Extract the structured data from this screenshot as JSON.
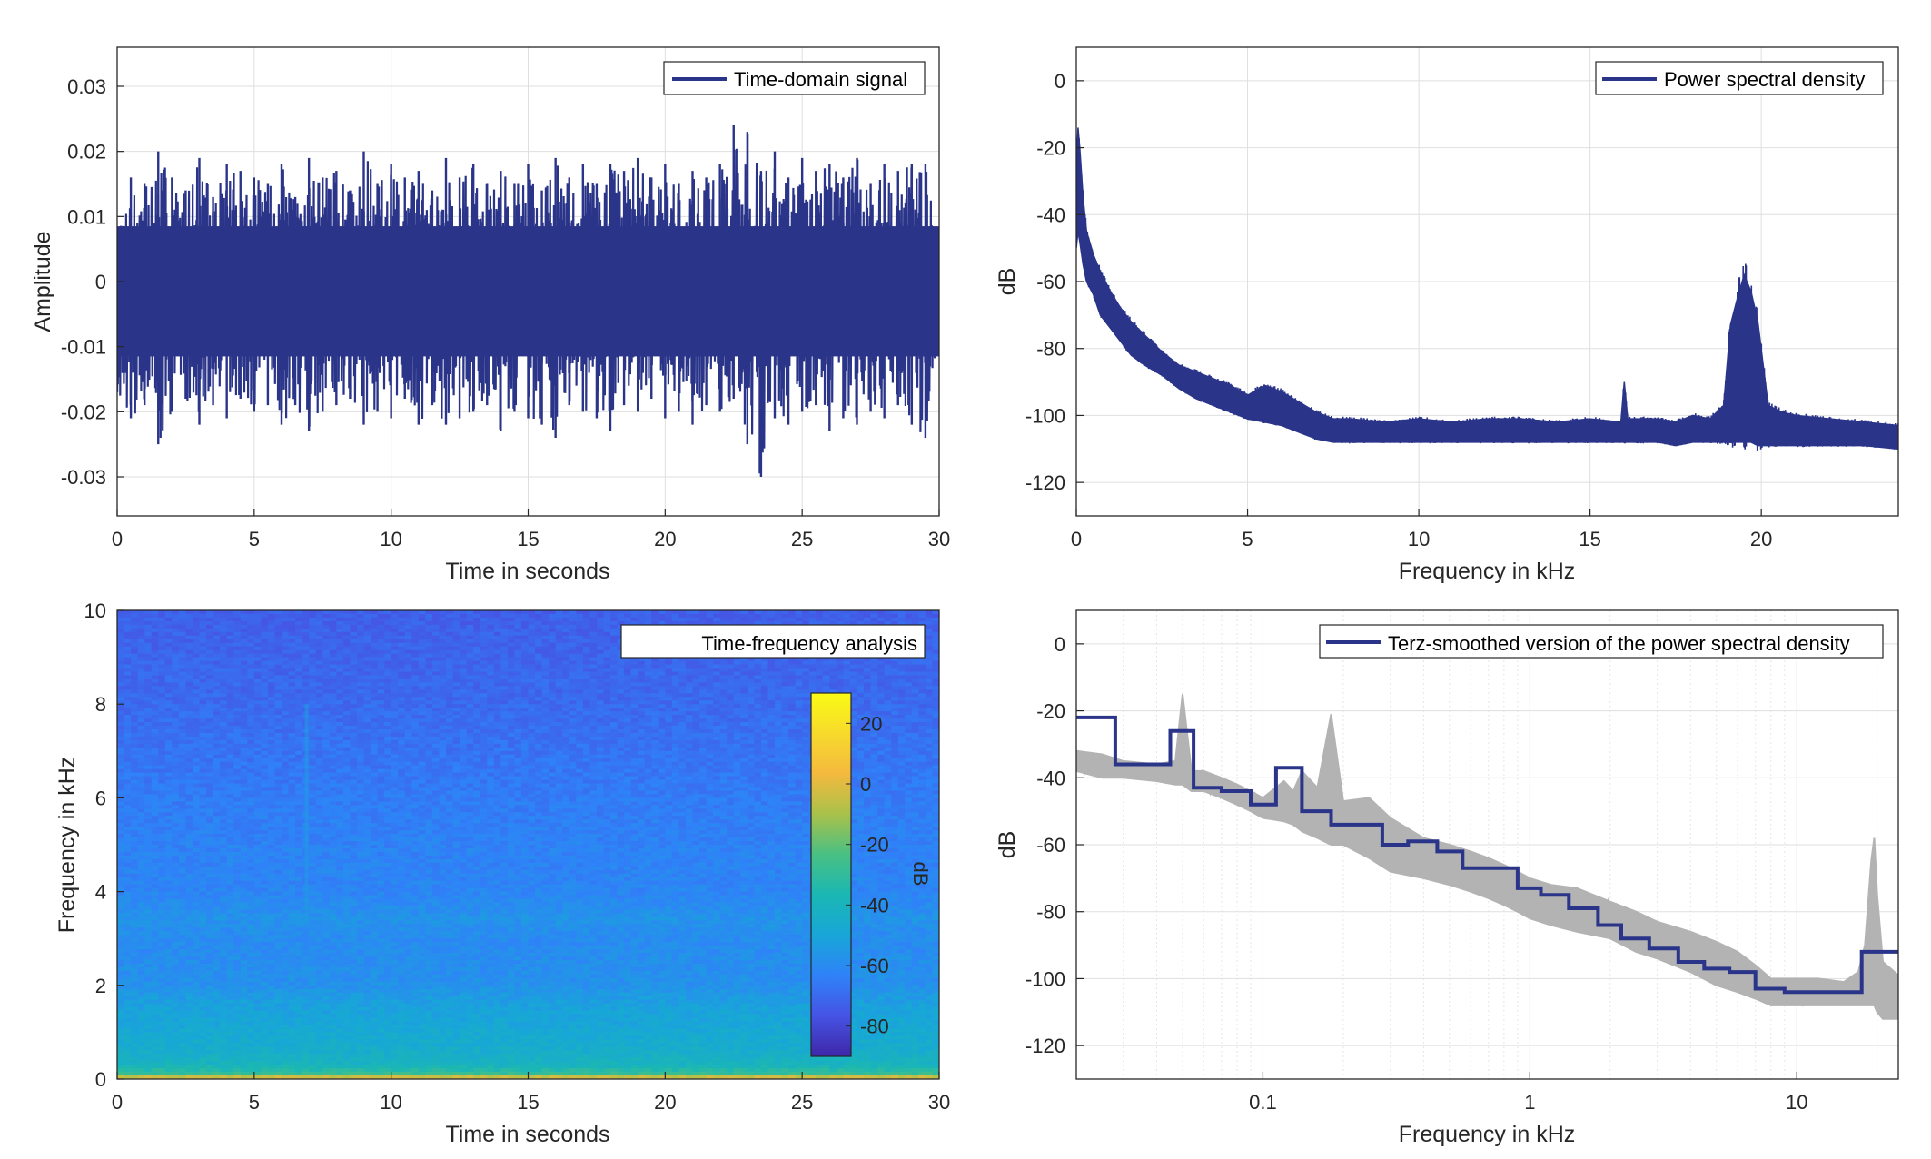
{
  "chart_data": [
    {
      "id": "time-domain",
      "type": "line",
      "xlabel": "Time in seconds",
      "ylabel": "Amplitude",
      "xlim": [
        0,
        30
      ],
      "ylim": [
        -0.036,
        0.036
      ],
      "xticks": [
        0,
        5,
        10,
        15,
        20,
        25,
        30
      ],
      "xtick_labels": [
        "0",
        "5",
        "10",
        "15",
        "20",
        "25",
        "30"
      ],
      "yticks": [
        0.03,
        0.02,
        0.01,
        0,
        -0.01,
        -0.02,
        -0.03
      ],
      "ytick_labels": [
        "0.03",
        "0.02",
        "0.01",
        "0",
        "-0.01",
        "-0.02",
        "-0.03"
      ],
      "grid": true,
      "legend_position": "top-right",
      "series": [
        {
          "name": "Time-domain signal",
          "color": "#2a3489",
          "x": [
            0,
            0.5,
            1,
            1.5,
            2,
            2.5,
            3,
            3.5,
            4,
            4.5,
            5,
            5.5,
            6,
            6.5,
            7,
            7.5,
            8,
            8.5,
            9,
            9.5,
            10,
            10.5,
            11,
            11.5,
            12,
            12.5,
            13,
            13.5,
            14,
            14.5,
            15,
            15.5,
            16,
            16.5,
            17,
            17.5,
            18,
            18.5,
            19,
            19.5,
            20,
            20.5,
            21,
            21.5,
            22,
            22.5,
            23,
            23.5,
            24,
            24.5,
            25,
            25.5,
            26,
            26.5,
            27,
            27.5,
            28,
            28.5,
            29,
            29.5,
            30
          ],
          "max": [
            0.006,
            0.016,
            0.015,
            0.02,
            0.016,
            0.014,
            0.019,
            0.013,
            0.018,
            0.017,
            0.016,
            0.015,
            0.018,
            0.013,
            0.019,
            0.016,
            0.017,
            0.014,
            0.02,
            0.015,
            0.018,
            0.016,
            0.017,
            0.014,
            0.019,
            0.016,
            0.018,
            0.015,
            0.017,
            0.015,
            0.018,
            0.014,
            0.019,
            0.016,
            0.018,
            0.015,
            0.018,
            0.017,
            0.019,
            0.016,
            0.018,
            0.015,
            0.017,
            0.016,
            0.018,
            0.024,
            0.023,
            0.017,
            0.02,
            0.016,
            0.019,
            0.017,
            0.018,
            0.016,
            0.019,
            0.015,
            0.018,
            0.017,
            0.018,
            0.018,
            0.005
          ],
          "min": [
            -0.017,
            -0.021,
            -0.019,
            -0.025,
            -0.02,
            -0.018,
            -0.022,
            -0.019,
            -0.021,
            -0.018,
            -0.02,
            -0.019,
            -0.022,
            -0.019,
            -0.023,
            -0.02,
            -0.019,
            -0.018,
            -0.022,
            -0.02,
            -0.021,
            -0.018,
            -0.022,
            -0.019,
            -0.022,
            -0.021,
            -0.02,
            -0.019,
            -0.023,
            -0.02,
            -0.021,
            -0.022,
            -0.024,
            -0.019,
            -0.02,
            -0.021,
            -0.023,
            -0.019,
            -0.02,
            -0.018,
            -0.021,
            -0.02,
            -0.022,
            -0.019,
            -0.02,
            -0.018,
            -0.025,
            -0.03,
            -0.021,
            -0.022,
            -0.02,
            -0.019,
            -0.023,
            -0.021,
            -0.022,
            -0.02,
            -0.021,
            -0.019,
            -0.022,
            -0.024,
            -0.006
          ]
        }
      ]
    },
    {
      "id": "psd",
      "type": "line",
      "xlabel": "Frequency in kHz",
      "ylabel": "dB",
      "xlim": [
        0,
        24
      ],
      "ylim": [
        -130,
        10
      ],
      "xticks": [
        0,
        5,
        10,
        15,
        20
      ],
      "xtick_labels": [
        "0",
        "5",
        "10",
        "15",
        "20"
      ],
      "yticks": [
        0,
        -20,
        -40,
        -60,
        -80,
        -100,
        -120
      ],
      "ytick_labels": [
        "0",
        "-20",
        "-40",
        "-60",
        "-80",
        "-100",
        "-120"
      ],
      "grid": true,
      "legend_position": "top-right",
      "series": [
        {
          "name": "Power spectral density",
          "color": "#2a3489",
          "x": [
            0,
            0.05,
            0.1,
            0.2,
            0.3,
            0.5,
            0.7,
            1,
            1.3,
            1.6,
            2,
            2.5,
            3,
            3.5,
            4,
            4.5,
            5,
            5.5,
            6,
            6.5,
            7,
            7.5,
            8,
            9,
            10,
            11,
            12,
            13,
            14,
            15,
            15.9,
            16,
            16.1,
            17,
            17.5,
            18,
            18.5,
            18.9,
            19.1,
            19.3,
            19.5,
            19.7,
            19.9,
            20.2,
            20.6,
            21,
            22,
            23,
            24
          ],
          "upper": [
            -25,
            -14,
            -20,
            -35,
            -45,
            -52,
            -57,
            -63,
            -68,
            -72,
            -76,
            -81,
            -85,
            -87,
            -89,
            -91,
            -94,
            -91,
            -93,
            -96,
            -99,
            -101,
            -101,
            -102,
            -101,
            -102,
            -101,
            -101,
            -102,
            -101,
            -102,
            -90,
            -101,
            -101,
            -102,
            -100,
            -101,
            -97,
            -73,
            -65,
            -58,
            -63,
            -72,
            -97,
            -99,
            -100,
            -101,
            -102,
            -103
          ],
          "lower": [
            -50,
            -45,
            -48,
            -55,
            -60,
            -64,
            -70,
            -74,
            -78,
            -82,
            -85,
            -88,
            -92,
            -95,
            -97,
            -99,
            -101,
            -102,
            -103,
            -105,
            -107,
            -108,
            -108,
            -108,
            -108,
            -108,
            -108,
            -108,
            -108,
            -108,
            -108,
            -108,
            -108,
            -108,
            -109,
            -108,
            -108,
            -108,
            -108,
            -108,
            -108,
            -108,
            -109,
            -109,
            -109,
            -109,
            -109,
            -109,
            -110
          ]
        }
      ]
    },
    {
      "id": "spectrogram",
      "type": "heatmap",
      "xlabel": "Time in seconds",
      "ylabel": "Frequency in kHz",
      "xlim": [
        0,
        30
      ],
      "ylim": [
        0,
        10
      ],
      "xticks": [
        0,
        5,
        10,
        15,
        20,
        25,
        30
      ],
      "xtick_labels": [
        "0",
        "5",
        "10",
        "15",
        "20",
        "25",
        "30"
      ],
      "yticks": [
        0,
        2,
        4,
        6,
        8,
        10
      ],
      "ytick_labels": [
        "0",
        "2",
        "4",
        "6",
        "8",
        "10"
      ],
      "legend_text": "Time-frequency analysis",
      "legend_position": "top-right",
      "colorbar": {
        "label": "dB",
        "range": [
          -90,
          30
        ],
        "ticks": [
          20,
          0,
          -20,
          -40,
          -60,
          -80
        ],
        "tick_labels": [
          "20",
          "0",
          "-20",
          "-40",
          "-60",
          "-80"
        ],
        "colormap": [
          "#3e26a8",
          "#4653e4",
          "#2f82f8",
          "#18a6d8",
          "#1ab7b4",
          "#49c083",
          "#a9c14a",
          "#f4b93e",
          "#f7da2c",
          "#f9fb15"
        ]
      },
      "level_profile_khz": [
        0,
        0.1,
        0.3,
        0.6,
        1,
        1.6,
        2,
        3,
        3.4,
        4,
        5,
        6,
        8,
        10
      ],
      "level_profile_db": [
        10,
        -28,
        -40,
        -45,
        -48,
        -52,
        -58,
        -60,
        -57,
        -62,
        -63,
        -65,
        -70,
        -73
      ]
    },
    {
      "id": "terz-psd",
      "type": "line",
      "xlabel": "Frequency in kHz",
      "ylabel": "dB",
      "xscale": "log",
      "xlim": [
        0.02,
        24
      ],
      "ylim": [
        -130,
        10
      ],
      "xticks": [
        0.1,
        1,
        10
      ],
      "xtick_labels": [
        "0.1",
        "1",
        "10"
      ],
      "yticks": [
        0,
        -20,
        -40,
        -60,
        -80,
        -100,
        -120
      ],
      "ytick_labels": [
        "0",
        "-20",
        "-40",
        "-60",
        "-80",
        "-100",
        "-120"
      ],
      "grid": true,
      "legend_position": "top-right",
      "series": [
        {
          "name": "",
          "color": "#b3b3b3",
          "x": [
            0.02,
            0.025,
            0.03,
            0.04,
            0.047,
            0.05,
            0.054,
            0.06,
            0.07,
            0.08,
            0.09,
            0.1,
            0.12,
            0.13,
            0.14,
            0.16,
            0.18,
            0.2,
            0.25,
            0.3,
            0.4,
            0.5,
            0.6,
            0.7,
            0.8,
            0.9,
            1,
            1.2,
            1.5,
            2,
            2.5,
            3,
            4,
            5,
            6,
            7,
            8,
            10,
            12,
            15,
            17,
            18,
            19,
            19.5,
            20,
            21,
            24
          ],
          "upper": [
            -32,
            -33,
            -35,
            -36,
            -35,
            -15,
            -38,
            -38,
            -40,
            -42,
            -44,
            -46,
            -41,
            -44,
            -38,
            -43,
            -21,
            -47,
            -46,
            -52,
            -58,
            -60,
            -62,
            -64,
            -66,
            -68,
            -70,
            -72,
            -73,
            -77,
            -80,
            -83,
            -86,
            -89,
            -92,
            -96,
            -100,
            -100,
            -100,
            -101,
            -98,
            -90,
            -65,
            -58,
            -75,
            -95,
            -99
          ],
          "lower": [
            -38,
            -40,
            -40,
            -41,
            -42,
            -42,
            -44,
            -44,
            -46,
            -48,
            -50,
            -52,
            -53,
            -54,
            -56,
            -58,
            -60,
            -60,
            -64,
            -68,
            -70,
            -72,
            -74,
            -76,
            -78,
            -80,
            -82,
            -84,
            -86,
            -88,
            -92,
            -94,
            -98,
            -102,
            -104,
            -106,
            -108,
            -108,
            -108,
            -108,
            -108,
            -108,
            -108,
            -108,
            -110,
            -112,
            -112
          ]
        },
        {
          "name": "Terz-smoothed version of the power spectral density",
          "color": "#2a3489",
          "x": [
            0.02,
            0.028,
            0.028,
            0.045,
            0.045,
            0.055,
            0.055,
            0.07,
            0.07,
            0.09,
            0.09,
            0.112,
            0.112,
            0.14,
            0.14,
            0.18,
            0.18,
            0.28,
            0.28,
            0.35,
            0.35,
            0.45,
            0.45,
            0.56,
            0.56,
            0.9,
            0.9,
            1.1,
            1.1,
            1.4,
            1.4,
            1.8,
            1.8,
            2.2,
            2.2,
            2.8,
            2.8,
            3.6,
            3.6,
            4.5,
            4.5,
            5.6,
            5.6,
            7,
            7,
            9,
            9,
            17.5,
            17.5,
            24
          ],
          "y": [
            -22,
            -22,
            -36,
            -36,
            -26,
            -26,
            -43,
            -43,
            -44,
            -44,
            -48,
            -48,
            -37,
            -37,
            -50,
            -50,
            -54,
            -54,
            -60,
            -60,
            -59,
            -59,
            -62,
            -62,
            -67,
            -67,
            -73,
            -73,
            -75,
            -75,
            -79,
            -79,
            -84,
            -84,
            -88,
            -88,
            -91,
            -91,
            -95,
            -95,
            -97,
            -97,
            -98,
            -98,
            -103,
            -103,
            -104,
            -104,
            -92,
            -92
          ]
        }
      ]
    }
  ]
}
